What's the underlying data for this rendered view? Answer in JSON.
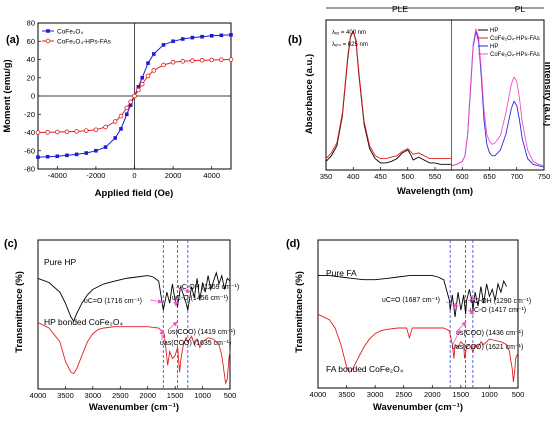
{
  "panels": {
    "a": {
      "letter": "(a)"
    },
    "b": {
      "letter": "(b)"
    },
    "c": {
      "letter": "(c)"
    },
    "d": {
      "letter": "(d)"
    }
  },
  "chart_data": [
    {
      "id": "a",
      "type": "line",
      "xlabel": "Applied field (Oe)",
      "ylabel": "Moment (emu/g)",
      "xlim": [
        -5000,
        5000
      ],
      "ylim": [
        -80,
        80
      ],
      "xticks": [
        "-4000",
        "-2000",
        "0",
        "2000",
        "4000"
      ],
      "yticks": [
        "-80",
        "-60",
        "-40",
        "-20",
        "0",
        "20",
        "40",
        "60",
        "80"
      ],
      "legend_position": "top-left",
      "series": [
        {
          "name": "CoFe₂O₄",
          "color": "#1c1cd6",
          "marker": "filled-square",
          "x": [
            -5000,
            -4500,
            -4000,
            -3500,
            -3000,
            -2500,
            -2000,
            -1500,
            -1000,
            -700,
            -400,
            -200,
            0,
            200,
            400,
            700,
            1000,
            1500,
            2000,
            2500,
            3000,
            3500,
            4000,
            4500,
            5000
          ],
          "y": [
            -67,
            -66.5,
            -66,
            -65,
            -64,
            -62.5,
            -60,
            -56,
            -46,
            -36,
            -20,
            -10,
            0,
            10,
            20,
            36,
            46,
            56,
            60,
            62.5,
            64,
            65,
            66,
            66.5,
            67
          ]
        },
        {
          "name": "CoFe₂O₄-HPs-FAs",
          "color": "#e02020",
          "marker": "open-circle",
          "x": [
            -5000,
            -4500,
            -4000,
            -3500,
            -3000,
            -2500,
            -2000,
            -1500,
            -1000,
            -700,
            -400,
            -200,
            0,
            200,
            400,
            700,
            1000,
            1500,
            2000,
            2500,
            3000,
            3500,
            4000,
            4500,
            5000
          ],
          "y": [
            -40,
            -39.8,
            -39.5,
            -39.2,
            -38.8,
            -38,
            -37,
            -34,
            -28,
            -22,
            -13,
            -6.5,
            0,
            6.5,
            13,
            22,
            28,
            34,
            37,
            38,
            38.8,
            39.2,
            39.5,
            39.8,
            40
          ]
        }
      ]
    },
    {
      "id": "b",
      "type": "line",
      "xlabel": "Wavelength (nm)",
      "ylabel_left": "Absorbance (a.u.)",
      "ylabel_right": "Intensity (a.u.)",
      "xlim": [
        350,
        750
      ],
      "xticks": [
        "350",
        "400",
        "450",
        "500",
        "550",
        "600",
        "650",
        "700",
        "750"
      ],
      "region_labels": [
        "PLE",
        "PL"
      ],
      "annotations": [
        "λₑₓ = 400 nm",
        "λₑₘ = 625 nm"
      ],
      "legend_position": "top-right",
      "series": [
        {
          "name": "HP",
          "color": "#000000",
          "x": [
            350,
            360,
            370,
            380,
            390,
            395,
            400,
            405,
            410,
            420,
            430,
            440,
            450,
            460,
            470,
            480,
            490,
            500,
            505,
            510,
            520,
            530,
            540,
            550,
            560,
            570,
            580
          ],
          "y": [
            0.06,
            0.1,
            0.17,
            0.38,
            0.78,
            0.93,
            0.97,
            0.9,
            0.68,
            0.32,
            0.15,
            0.08,
            0.05,
            0.05,
            0.06,
            0.08,
            0.12,
            0.14,
            0.11,
            0.07,
            0.09,
            0.07,
            0.05,
            0.05,
            0.04,
            0.04,
            0.04
          ]
        },
        {
          "name": "CoFe₂O₄-HPs-FAs",
          "color": "#e02020",
          "x": [
            350,
            360,
            370,
            380,
            390,
            395,
            400,
            405,
            410,
            420,
            430,
            440,
            450,
            460,
            470,
            480,
            490,
            500,
            505,
            510,
            520,
            530,
            540,
            550,
            560,
            570,
            580
          ],
          "y": [
            0.08,
            0.12,
            0.19,
            0.4,
            0.8,
            0.94,
            0.97,
            0.91,
            0.7,
            0.34,
            0.17,
            0.1,
            0.08,
            0.08,
            0.09,
            0.1,
            0.13,
            0.15,
            0.13,
            0.11,
            0.12,
            0.1,
            0.08,
            0.08,
            0.08,
            0.08,
            0.08
          ]
        },
        {
          "name": "HP",
          "color": "#2a2ae0",
          "x": [
            580,
            590,
            600,
            605,
            610,
            615,
            620,
            625,
            630,
            635,
            640,
            645,
            650,
            655,
            660,
            670,
            680,
            690,
            695,
            700,
            705,
            710,
            720,
            730,
            740,
            750
          ],
          "y": [
            0.03,
            0.04,
            0.06,
            0.1,
            0.25,
            0.55,
            0.86,
            0.97,
            0.9,
            0.65,
            0.35,
            0.18,
            0.12,
            0.1,
            0.1,
            0.14,
            0.25,
            0.43,
            0.48,
            0.45,
            0.35,
            0.22,
            0.08,
            0.04,
            0.03,
            0.02
          ]
        },
        {
          "name": "CoFe₂O₄-HPs-FAs",
          "color": "#f050c8",
          "x": [
            580,
            590,
            600,
            605,
            610,
            615,
            620,
            625,
            630,
            635,
            640,
            645,
            650,
            655,
            660,
            670,
            680,
            690,
            695,
            700,
            705,
            710,
            720,
            730,
            740,
            750
          ],
          "y": [
            0.03,
            0.04,
            0.06,
            0.1,
            0.26,
            0.58,
            0.88,
            0.99,
            0.93,
            0.7,
            0.42,
            0.25,
            0.2,
            0.18,
            0.19,
            0.24,
            0.4,
            0.6,
            0.65,
            0.62,
            0.5,
            0.34,
            0.14,
            0.06,
            0.04,
            0.03
          ]
        }
      ]
    },
    {
      "id": "c",
      "type": "line",
      "xlabel": "Wavenumber (cm⁻¹)",
      "ylabel": "Transmittance (%)",
      "xlim": [
        4000,
        500
      ],
      "xticks": [
        "4000",
        "3500",
        "3000",
        "2500",
        "2000",
        "1500",
        "1000",
        "500"
      ],
      "reference_lines": [
        1716,
        1456,
        1269
      ],
      "series": [
        {
          "name": "Pure HP",
          "color": "#000000",
          "x": [
            4000,
            3800,
            3600,
            3500,
            3400,
            3350,
            3300,
            3200,
            3100,
            3000,
            2900,
            2800,
            2600,
            2400,
            2200,
            2000,
            1900,
            1800,
            1716,
            1650,
            1600,
            1550,
            1500,
            1456,
            1400,
            1350,
            1300,
            1269,
            1200,
            1150,
            1100,
            1050,
            1000,
            950,
            900,
            850,
            800,
            750,
            700,
            650,
            600,
            550,
            500
          ],
          "y": [
            0.78,
            0.75,
            0.68,
            0.6,
            0.5,
            0.47,
            0.52,
            0.6,
            0.66,
            0.7,
            0.72,
            0.74,
            0.76,
            0.78,
            0.79,
            0.8,
            0.79,
            0.76,
            0.55,
            0.68,
            0.6,
            0.74,
            0.62,
            0.58,
            0.72,
            0.66,
            0.6,
            0.55,
            0.72,
            0.64,
            0.78,
            0.62,
            0.75,
            0.68,
            0.8,
            0.7,
            0.76,
            0.82,
            0.74,
            0.8,
            0.7,
            0.78,
            0.76
          ]
        },
        {
          "name": "HP bonded CoFe₂O₄",
          "color": "#e02020",
          "x": [
            4000,
            3800,
            3600,
            3500,
            3400,
            3350,
            3300,
            3200,
            3100,
            3000,
            2900,
            2800,
            2600,
            2400,
            2200,
            2000,
            1800,
            1700,
            1635,
            1600,
            1550,
            1500,
            1456,
            1419,
            1400,
            1350,
            1300,
            1269,
            1200,
            1150,
            1100,
            1050,
            1000,
            900,
            800,
            700,
            650,
            600,
            580,
            550,
            520,
            500
          ],
          "y": [
            0.46,
            0.42,
            0.32,
            0.18,
            0.1,
            0.09,
            0.12,
            0.22,
            0.32,
            0.38,
            0.41,
            0.42,
            0.43,
            0.43,
            0.43,
            0.43,
            0.42,
            0.38,
            0.15,
            0.25,
            0.2,
            0.22,
            0.28,
            0.1,
            0.18,
            0.3,
            0.35,
            0.32,
            0.36,
            0.3,
            0.34,
            0.28,
            0.32,
            0.35,
            0.34,
            0.3,
            0.22,
            0.08,
            0.02,
            0.05,
            0.2,
            0.25
          ]
        }
      ],
      "annotations": [
        "υC=O (1716 cm⁻¹)",
        "υC-OH (1269 cm⁻¹)",
        "υC-O (1456 cm⁻¹)",
        "υs(COO) (1419 cm⁻¹)",
        "υas(COO) (1635 cm⁻¹)"
      ]
    },
    {
      "id": "d",
      "type": "line",
      "xlabel": "Wavenumber (cm⁻¹)",
      "ylabel": "Transmittance (%)",
      "xlim": [
        4000,
        500
      ],
      "xticks": [
        "4000",
        "3500",
        "3000",
        "2500",
        "2000",
        "1500",
        "1000",
        "500"
      ],
      "reference_lines": [
        1687,
        1417,
        1290
      ],
      "series": [
        {
          "name": "Pure FA",
          "color": "#000000",
          "x": [
            4000,
            3800,
            3600,
            3400,
            3200,
            3000,
            2800,
            2600,
            2400,
            2200,
            2000,
            1900,
            1800,
            1700,
            1687,
            1650,
            1600,
            1550,
            1500,
            1450,
            1417,
            1400,
            1350,
            1300,
            1290,
            1250,
            1200,
            1150,
            1100,
            1050,
            1000,
            950,
            900,
            850,
            800,
            750,
            700
          ],
          "y": [
            0.8,
            0.8,
            0.79,
            0.78,
            0.77,
            0.77,
            0.78,
            0.79,
            0.8,
            0.8,
            0.8,
            0.79,
            0.77,
            0.62,
            0.55,
            0.66,
            0.5,
            0.68,
            0.55,
            0.66,
            0.52,
            0.62,
            0.7,
            0.6,
            0.55,
            0.68,
            0.58,
            0.72,
            0.6,
            0.74,
            0.65,
            0.7,
            0.62,
            0.74,
            0.68,
            0.76,
            0.72
          ]
        },
        {
          "name": "FA bonded CoFe₂O₄",
          "color": "#e02020",
          "x": [
            4000,
            3800,
            3700,
            3600,
            3500,
            3450,
            3400,
            3300,
            3200,
            3100,
            3000,
            2900,
            2800,
            2600,
            2450,
            2400,
            2350,
            2300,
            2200,
            2000,
            1800,
            1700,
            1650,
            1621,
            1600,
            1550,
            1500,
            1450,
            1436,
            1400,
            1350,
            1300,
            1290,
            1250,
            1200,
            1150,
            1100,
            1000,
            900,
            800,
            700,
            650,
            600,
            580,
            560,
            540,
            520,
            500
          ],
          "y": [
            0.52,
            0.48,
            0.42,
            0.3,
            0.14,
            0.1,
            0.12,
            0.2,
            0.28,
            0.34,
            0.38,
            0.4,
            0.41,
            0.42,
            0.42,
            0.35,
            0.42,
            0.42,
            0.42,
            0.42,
            0.42,
            0.4,
            0.3,
            0.2,
            0.3,
            0.28,
            0.32,
            0.3,
            0.2,
            0.28,
            0.3,
            0.26,
            0.24,
            0.3,
            0.28,
            0.32,
            0.3,
            0.34,
            0.33,
            0.32,
            0.3,
            0.25,
            0.12,
            0.03,
            0.1,
            0.2,
            0.22,
            0.24
          ]
        }
      ],
      "annotations": [
        "υC=O (1687 cm⁻¹)",
        "υC-OH (1290 cm⁻¹)",
        "υC-O (1417 cm⁻¹)",
        "υs(COO) (1436 cm⁻¹)",
        "υas(COO) (1621 cm⁻¹)"
      ]
    }
  ]
}
